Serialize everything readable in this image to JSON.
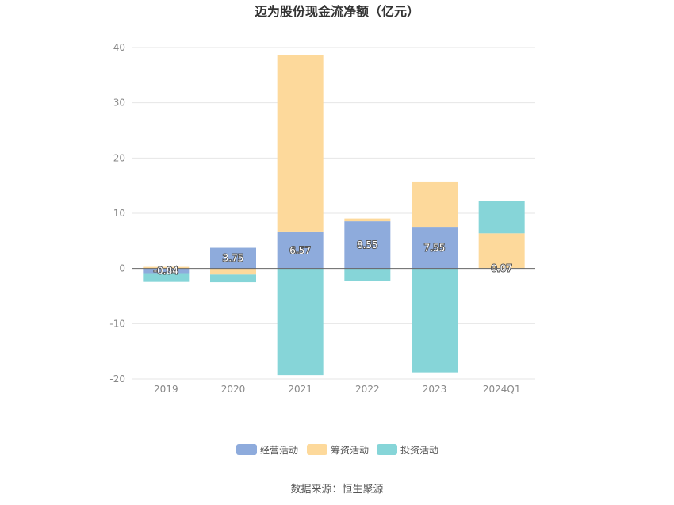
{
  "title": "迈为股份现金流净额（亿元）",
  "source": "数据来源：恒生聚源",
  "chart_data": {
    "type": "bar",
    "stacked": true,
    "categories": [
      "2019",
      "2020",
      "2021",
      "2022",
      "2023",
      "2024Q1"
    ],
    "series": [
      {
        "name": "经营活动",
        "color": "#8eabdc",
        "values": [
          -0.84,
          3.75,
          6.57,
          8.55,
          7.55,
          0.07
        ]
      },
      {
        "name": "筹资活动",
        "color": "#fdd99b",
        "values": [
          0.3,
          -1.1,
          32.1,
          0.5,
          8.2,
          6.3
        ]
      },
      {
        "name": "投资活动",
        "color": "#86d5d8",
        "values": [
          -1.6,
          -1.4,
          -19.3,
          -2.2,
          -18.8,
          5.8
        ]
      }
    ],
    "data_labels": [
      "-0.84",
      "3.75",
      "6.57",
      "8.55",
      "7.55",
      "0.07"
    ],
    "ylim": [
      -20,
      40
    ],
    "yticks": [
      -20,
      -10,
      0,
      10,
      20,
      30,
      40
    ],
    "grid": true,
    "legend_position": "bottom"
  }
}
